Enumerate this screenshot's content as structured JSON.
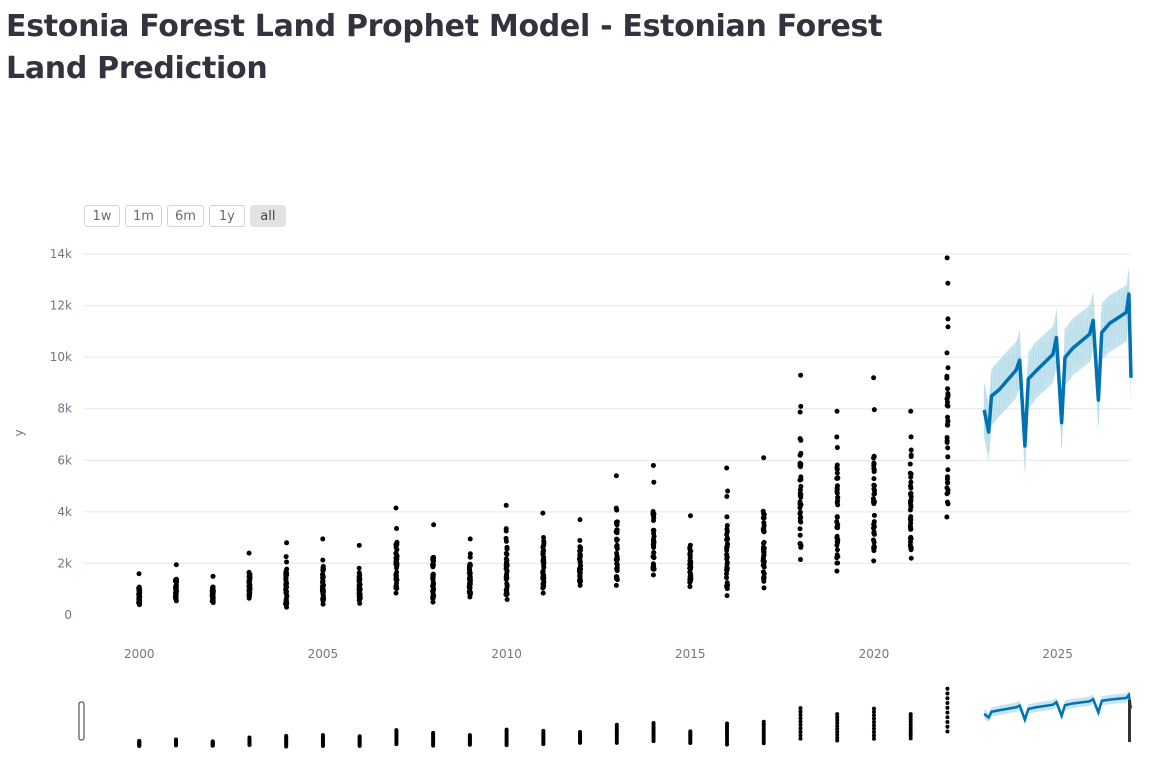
{
  "page": {
    "title": "Estonia Forest Land Prophet Model - Estonian Forest Land Prediction"
  },
  "range_selector": {
    "buttons": [
      {
        "label": "1w",
        "active": false
      },
      {
        "label": "1m",
        "active": false
      },
      {
        "label": "6m",
        "active": false
      },
      {
        "label": "1y",
        "active": false
      },
      {
        "label": "all",
        "active": true
      }
    ]
  },
  "chart_data": {
    "type": "scatter",
    "title": "",
    "xlabel": "",
    "ylabel": "y",
    "x_axis": {
      "type": "date",
      "range": [
        "1998-07-01",
        "2026-12-31"
      ],
      "tick_values": [
        2000,
        2005,
        2010,
        2015,
        2020,
        2025
      ],
      "tick_labels": [
        "2000",
        "2005",
        "2010",
        "2015",
        "2020",
        "2025"
      ]
    },
    "y_axis": {
      "range": [
        -1000,
        14500
      ],
      "tick_values": [
        0,
        2000,
        4000,
        6000,
        8000,
        10000,
        12000,
        14000
      ],
      "tick_labels": [
        "0",
        "2k",
        "4k",
        "6k",
        "8k",
        "10k",
        "12k",
        "14k"
      ]
    },
    "grid": true,
    "rangeslider": true,
    "colors": {
      "actual": "#000000",
      "forecast": "#0072b2",
      "interval": "#add8e6"
    },
    "series": [
      {
        "kind": "actual_points",
        "groups": [
          {
            "x": "2000-01-01",
            "min": 400,
            "max": 1600
          },
          {
            "x": "2001-01-01",
            "min": 550,
            "max": 1950
          },
          {
            "x": "2002-01-01",
            "min": 480,
            "max": 1500
          },
          {
            "x": "2003-01-01",
            "min": 650,
            "max": 2400
          },
          {
            "x": "2004-01-01",
            "min": 300,
            "max": 2800
          },
          {
            "x": "2005-01-01",
            "min": 420,
            "max": 2950
          },
          {
            "x": "2006-01-01",
            "min": 450,
            "max": 2700
          },
          {
            "x": "2007-01-01",
            "min": 850,
            "max": 4150
          },
          {
            "x": "2008-01-01",
            "min": 500,
            "max": 3500
          },
          {
            "x": "2009-01-01",
            "min": 700,
            "max": 2950
          },
          {
            "x": "2010-01-01",
            "min": 600,
            "max": 4250
          },
          {
            "x": "2011-01-01",
            "min": 850,
            "max": 3950
          },
          {
            "x": "2012-01-01",
            "min": 1150,
            "max": 3700
          },
          {
            "x": "2013-01-01",
            "min": 1150,
            "max": 5400
          },
          {
            "x": "2014-01-01",
            "min": 1550,
            "max": 5800
          },
          {
            "x": "2015-01-01",
            "min": 1100,
            "max": 3850
          },
          {
            "x": "2016-01-01",
            "min": 750,
            "max": 5700
          },
          {
            "x": "2017-01-01",
            "min": 1050,
            "max": 6100
          },
          {
            "x": "2018-01-01",
            "min": 2150,
            "max": 9300
          },
          {
            "x": "2019-01-01",
            "min": 1700,
            "max": 7900
          },
          {
            "x": "2020-01-01",
            "min": 2100,
            "max": 9200
          },
          {
            "x": "2021-01-01",
            "min": 2200,
            "max": 7900
          },
          {
            "x": "2022-01-01",
            "min": 3800,
            "max": 13850
          }
        ]
      },
      {
        "kind": "forecast",
        "start": "2023-01-01",
        "end": "2026-12-31",
        "points": [
          {
            "x": "2023-01-01",
            "yhat": 7950
          },
          {
            "x": "2023-02-15",
            "yhat": 7100
          },
          {
            "x": "2023-03-15",
            "yhat": 8450
          },
          {
            "x": "2023-06-01",
            "yhat": 8800
          },
          {
            "x": "2023-11-15",
            "yhat": 9500
          },
          {
            "x": "2023-12-20",
            "yhat": 9900
          },
          {
            "x": "2024-02-10",
            "yhat": 6600
          },
          {
            "x": "2024-03-15",
            "yhat": 9100
          },
          {
            "x": "2024-06-01",
            "yhat": 9500
          },
          {
            "x": "2024-11-15",
            "yhat": 10100
          },
          {
            "x": "2024-12-20",
            "yhat": 10700
          },
          {
            "x": "2025-02-10",
            "yhat": 7500
          },
          {
            "x": "2025-03-15",
            "yhat": 10000
          },
          {
            "x": "2025-06-01",
            "yhat": 10400
          },
          {
            "x": "2025-11-15",
            "yhat": 10900
          },
          {
            "x": "2025-12-20",
            "yhat": 11400
          },
          {
            "x": "2026-02-10",
            "yhat": 8300
          },
          {
            "x": "2026-03-15",
            "yhat": 11000
          },
          {
            "x": "2026-06-01",
            "yhat": 11300
          },
          {
            "x": "2026-11-15",
            "yhat": 11700
          },
          {
            "x": "2026-12-10",
            "yhat": 12400
          },
          {
            "x": "2026-12-31",
            "yhat": 9200
          }
        ],
        "interval_halfwidth": 1100
      }
    ]
  }
}
